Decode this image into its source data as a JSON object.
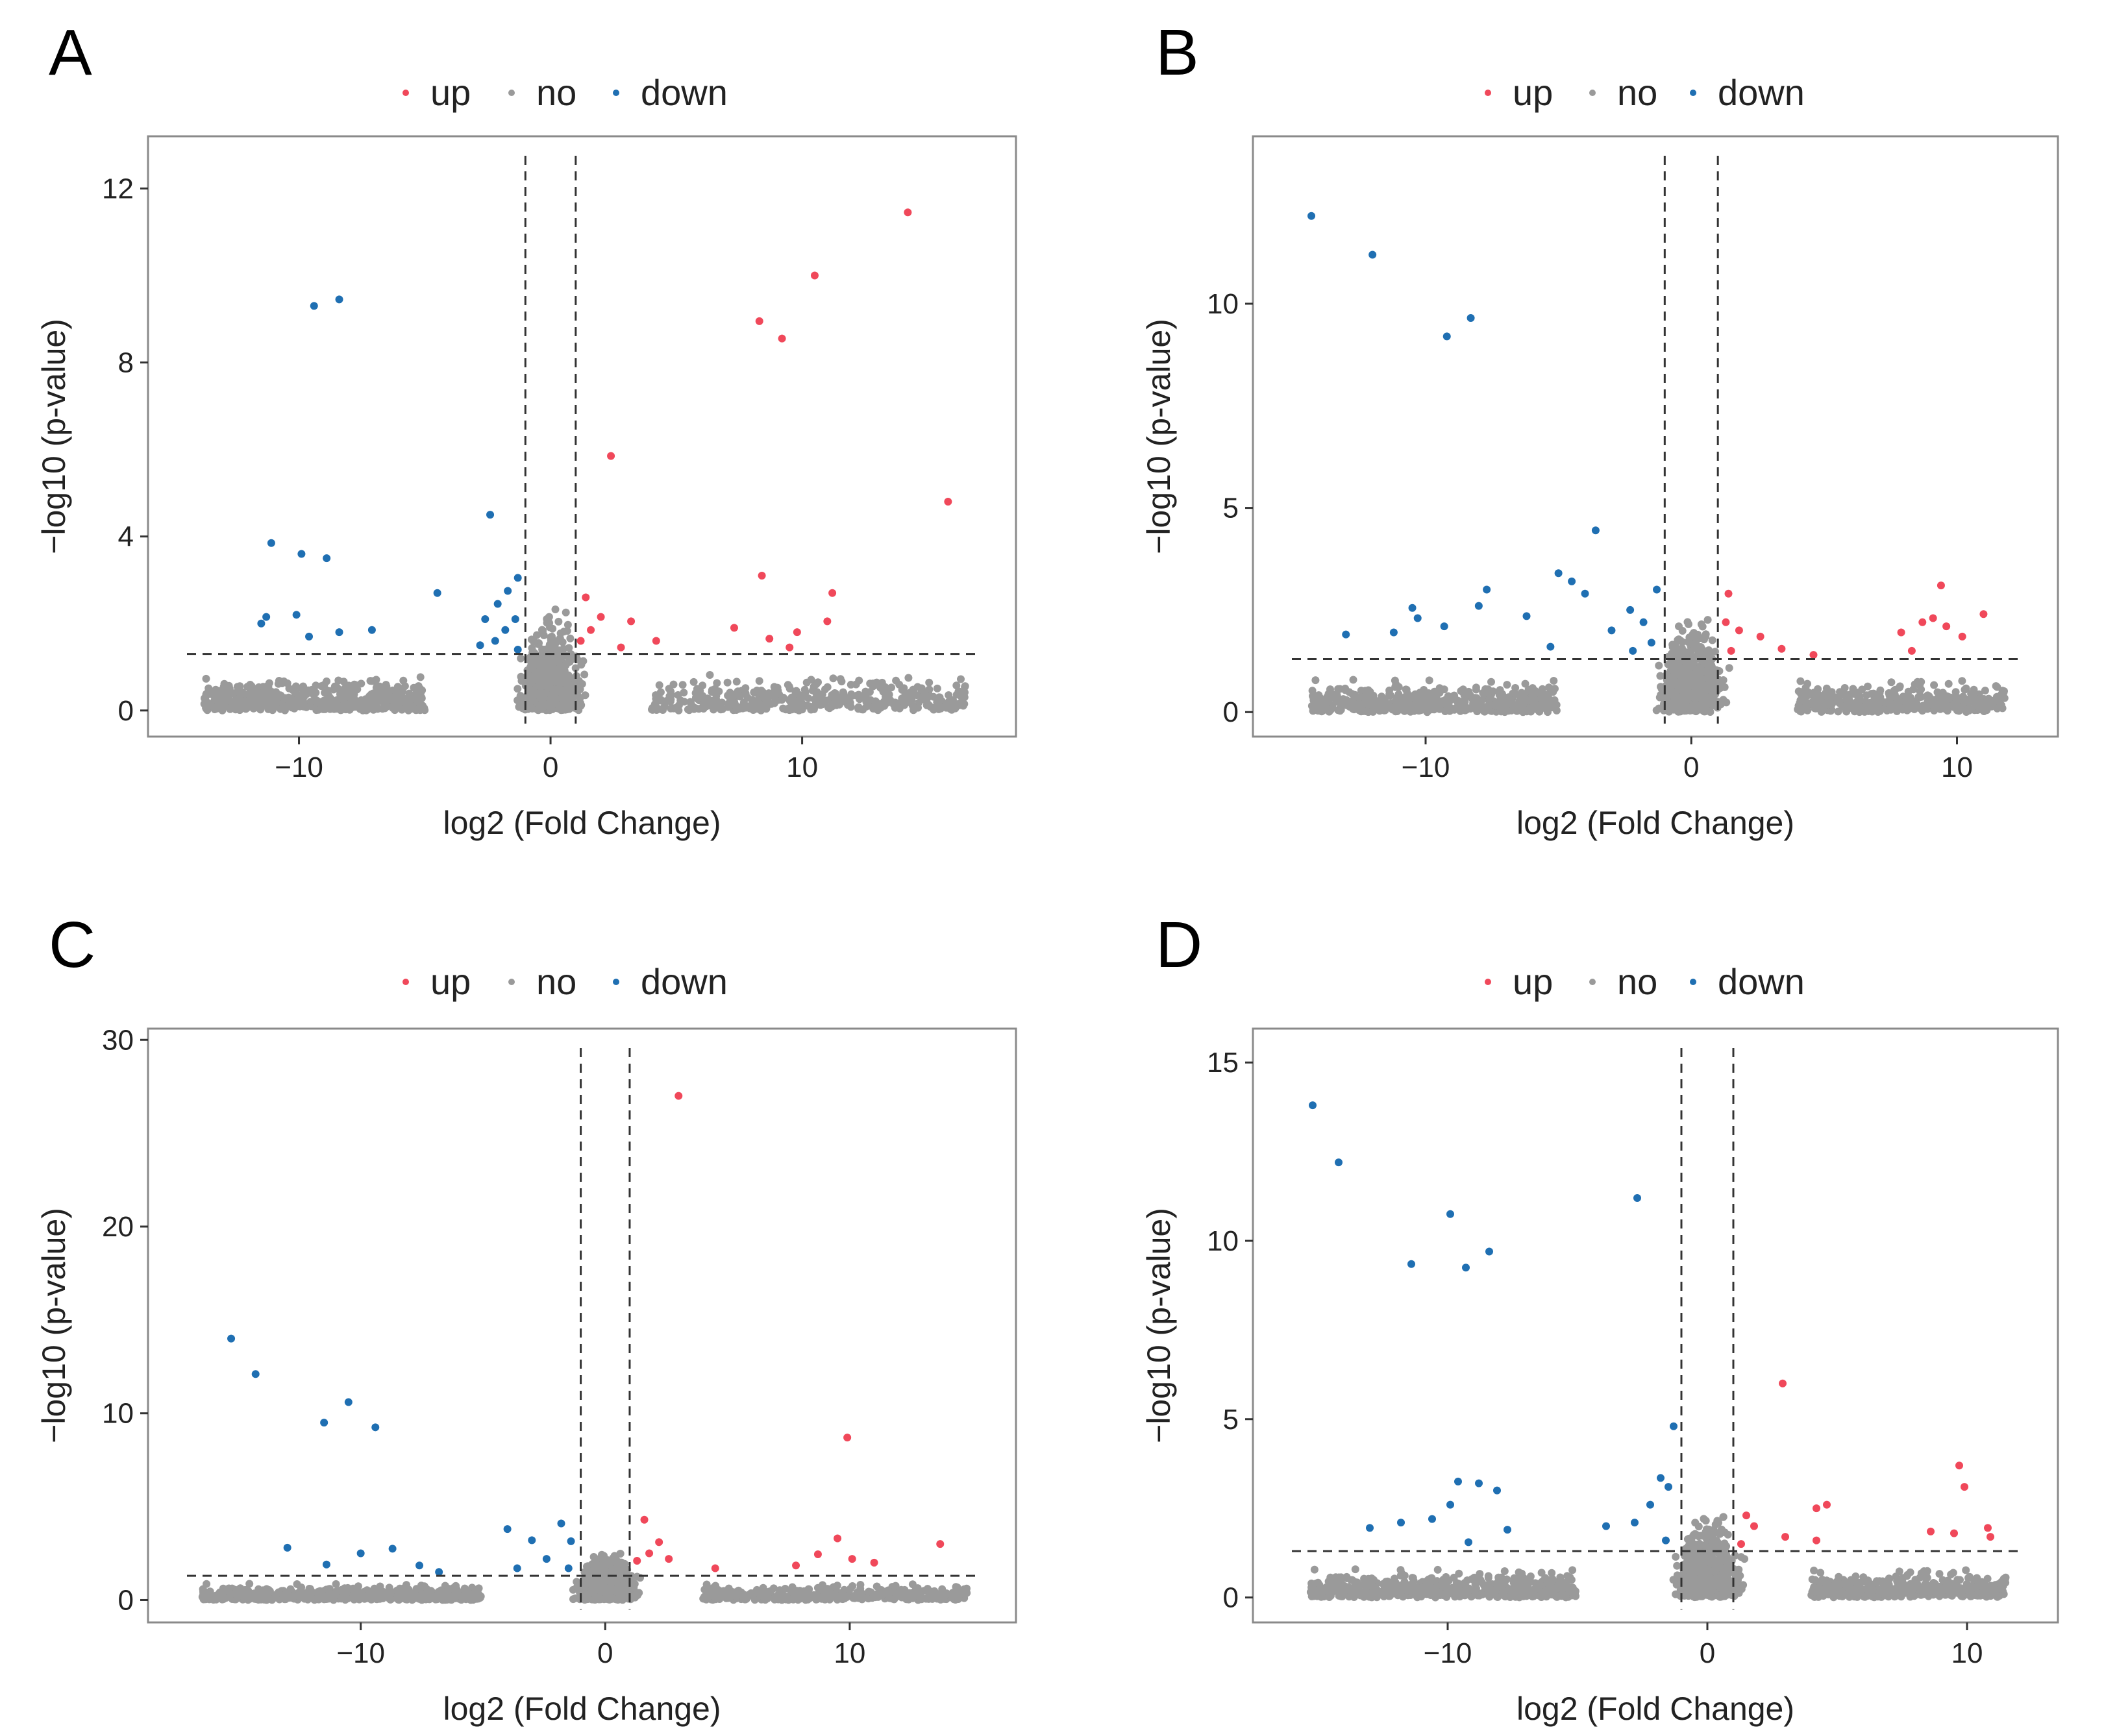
{
  "figure": {
    "legend_labels": [
      "up",
      "no",
      "down"
    ],
    "colors": {
      "up": "#f0485a",
      "no": "#9a9a9a",
      "down": "#1f6fb2"
    }
  },
  "chart_data": [
    {
      "panel": "A",
      "type": "scatter",
      "xlabel": "log2 (Fold Change)",
      "ylabel": "-log10 (p-value)",
      "xlim": [
        -16,
        18.5
      ],
      "ylim": [
        -0.6,
        13.2
      ],
      "xticks": [
        -10,
        0,
        10
      ],
      "yticks": [
        0,
        4,
        8,
        12
      ],
      "fc_threshold": 1,
      "p_threshold_line": 1.3,
      "down_points": [
        [
          -9.4,
          9.3
        ],
        [
          -8.4,
          9.45
        ],
        [
          -11.1,
          3.85
        ],
        [
          -9.9,
          3.6
        ],
        [
          -8.9,
          3.5
        ],
        [
          -11.5,
          2.0
        ],
        [
          -11.3,
          2.15
        ],
        [
          -10.1,
          2.2
        ],
        [
          -9.6,
          1.7
        ],
        [
          -8.4,
          1.8
        ],
        [
          -7.1,
          1.85
        ],
        [
          -4.5,
          2.7
        ],
        [
          -2.4,
          4.5
        ],
        [
          -1.3,
          3.05
        ],
        [
          -1.7,
          2.75
        ],
        [
          -2.1,
          2.45
        ],
        [
          -2.6,
          2.1
        ],
        [
          -1.4,
          2.1
        ],
        [
          -1.8,
          1.85
        ],
        [
          -2.2,
          1.6
        ],
        [
          -2.8,
          1.5
        ],
        [
          -1.3,
          1.4
        ]
      ],
      "up_points": [
        [
          14.2,
          11.45
        ],
        [
          10.5,
          10.0
        ],
        [
          8.3,
          8.95
        ],
        [
          9.2,
          8.55
        ],
        [
          2.4,
          5.85
        ],
        [
          15.8,
          4.8
        ],
        [
          8.4,
          3.1
        ],
        [
          1.4,
          2.6
        ],
        [
          2.0,
          2.15
        ],
        [
          1.6,
          1.85
        ],
        [
          3.2,
          2.05
        ],
        [
          4.2,
          1.6
        ],
        [
          11.2,
          2.7
        ],
        [
          11.0,
          2.05
        ],
        [
          9.8,
          1.8
        ],
        [
          8.7,
          1.65
        ],
        [
          7.3,
          1.9
        ],
        [
          1.2,
          1.6
        ],
        [
          2.8,
          1.45
        ],
        [
          9.5,
          1.45
        ]
      ],
      "no_points_generated": 1500
    },
    {
      "panel": "B",
      "type": "scatter",
      "xlabel": "log2 (Fold Change)",
      "ylabel": "-log10 (p-value)",
      "xlim": [
        -16.5,
        13.8
      ],
      "ylim": [
        -0.6,
        14.1
      ],
      "xticks": [
        -10,
        0,
        10
      ],
      "yticks": [
        0,
        5,
        10
      ],
      "fc_threshold": 1,
      "p_threshold_line": 1.3,
      "down_points": [
        [
          -14.3,
          12.15
        ],
        [
          -12.0,
          11.2
        ],
        [
          -9.2,
          9.2
        ],
        [
          -8.3,
          9.65
        ],
        [
          -3.6,
          4.45
        ],
        [
          -5.0,
          3.4
        ],
        [
          -4.5,
          3.2
        ],
        [
          -4.0,
          2.9
        ],
        [
          -7.7,
          3.0
        ],
        [
          -8.0,
          2.6
        ],
        [
          -10.5,
          2.55
        ],
        [
          -10.3,
          2.3
        ],
        [
          -9.3,
          2.1
        ],
        [
          -13.0,
          1.9
        ],
        [
          -11.2,
          1.95
        ],
        [
          -6.2,
          2.35
        ],
        [
          -2.3,
          2.5
        ],
        [
          -1.3,
          3.0
        ],
        [
          -1.8,
          2.2
        ],
        [
          -3.0,
          2.0
        ],
        [
          -1.5,
          1.7
        ],
        [
          -2.2,
          1.5
        ],
        [
          -5.3,
          1.6
        ]
      ],
      "up_points": [
        [
          1.4,
          2.9
        ],
        [
          1.3,
          2.2
        ],
        [
          1.8,
          2.0
        ],
        [
          2.6,
          1.85
        ],
        [
          3.4,
          1.55
        ],
        [
          1.5,
          1.5
        ],
        [
          4.6,
          1.4
        ],
        [
          9.4,
          3.1
        ],
        [
          9.1,
          2.3
        ],
        [
          9.6,
          2.1
        ],
        [
          11.0,
          2.4
        ],
        [
          8.7,
          2.2
        ],
        [
          7.9,
          1.95
        ],
        [
          10.2,
          1.85
        ],
        [
          8.3,
          1.5
        ]
      ],
      "no_points_generated": 1500
    },
    {
      "panel": "C",
      "type": "scatter",
      "xlabel": "log2 (Fold Change)",
      "ylabel": "-log10 (p-value)",
      "xlim": [
        -18.7,
        16.8
      ],
      "ylim": [
        -1.2,
        30.6
      ],
      "xticks": [
        -10,
        0,
        10
      ],
      "yticks": [
        0,
        10,
        20,
        30
      ],
      "fc_threshold": 1,
      "p_threshold_line": 1.3,
      "down_points": [
        [
          -15.3,
          14.0
        ],
        [
          -14.3,
          12.1
        ],
        [
          -10.5,
          10.6
        ],
        [
          -11.5,
          9.5
        ],
        [
          -9.4,
          9.25
        ],
        [
          -13.0,
          2.8
        ],
        [
          -11.4,
          1.9
        ],
        [
          -10.0,
          2.5
        ],
        [
          -8.7,
          2.75
        ],
        [
          -7.6,
          1.85
        ],
        [
          -4.0,
          3.8
        ],
        [
          -3.0,
          3.2
        ],
        [
          -1.8,
          4.1
        ],
        [
          -1.4,
          3.15
        ],
        [
          -2.4,
          2.2
        ],
        [
          -3.6,
          1.7
        ],
        [
          -1.5,
          1.7
        ],
        [
          -6.8,
          1.5
        ]
      ],
      "up_points": [
        [
          3.0,
          27.0
        ],
        [
          9.9,
          8.7
        ],
        [
          1.6,
          4.3
        ],
        [
          2.2,
          3.1
        ],
        [
          1.8,
          2.5
        ],
        [
          2.6,
          2.2
        ],
        [
          1.3,
          2.1
        ],
        [
          9.5,
          3.3
        ],
        [
          8.7,
          2.45
        ],
        [
          10.1,
          2.2
        ],
        [
          13.7,
          3.0
        ],
        [
          11.0,
          2.0
        ],
        [
          7.8,
          1.85
        ],
        [
          4.5,
          1.7
        ]
      ],
      "no_points_generated": 1600
    },
    {
      "panel": "D",
      "type": "scatter",
      "xlabel": "log2 (Fold Change)",
      "ylabel": "-log10 (p-value)",
      "xlim": [
        -17.5,
        13.5
      ],
      "ylim": [
        -0.7,
        15.95
      ],
      "xticks": [
        -10,
        0,
        10
      ],
      "yticks": [
        0,
        5,
        10,
        15
      ],
      "fc_threshold": 1,
      "p_threshold_line": 1.3,
      "down_points": [
        [
          -15.2,
          13.8
        ],
        [
          -14.2,
          12.2
        ],
        [
          -9.9,
          10.75
        ],
        [
          -2.7,
          11.2
        ],
        [
          -11.4,
          9.35
        ],
        [
          -9.3,
          9.25
        ],
        [
          -8.4,
          9.7
        ],
        [
          -1.3,
          4.8
        ],
        [
          -1.8,
          3.35
        ],
        [
          -1.5,
          3.1
        ],
        [
          -2.2,
          2.6
        ],
        [
          -2.8,
          2.1
        ],
        [
          -1.6,
          1.6
        ],
        [
          -3.9,
          2.0
        ],
        [
          -9.6,
          3.25
        ],
        [
          -8.8,
          3.2
        ],
        [
          -8.1,
          3.0
        ],
        [
          -10.6,
          2.2
        ],
        [
          -9.9,
          2.6
        ],
        [
          -11.8,
          2.1
        ],
        [
          -13.0,
          1.95
        ],
        [
          -7.7,
          1.9
        ],
        [
          -9.2,
          1.55
        ]
      ],
      "up_points": [
        [
          2.9,
          6.0
        ],
        [
          9.7,
          3.7
        ],
        [
          9.9,
          3.1
        ],
        [
          4.6,
          2.6
        ],
        [
          4.2,
          2.5
        ],
        [
          10.8,
          1.95
        ],
        [
          9.5,
          1.8
        ],
        [
          8.6,
          1.85
        ],
        [
          3.0,
          1.7
        ],
        [
          4.2,
          1.6
        ],
        [
          1.5,
          2.3
        ],
        [
          1.8,
          2.0
        ],
        [
          1.3,
          1.5
        ],
        [
          10.9,
          1.7
        ]
      ],
      "no_points_generated": 1600
    }
  ]
}
